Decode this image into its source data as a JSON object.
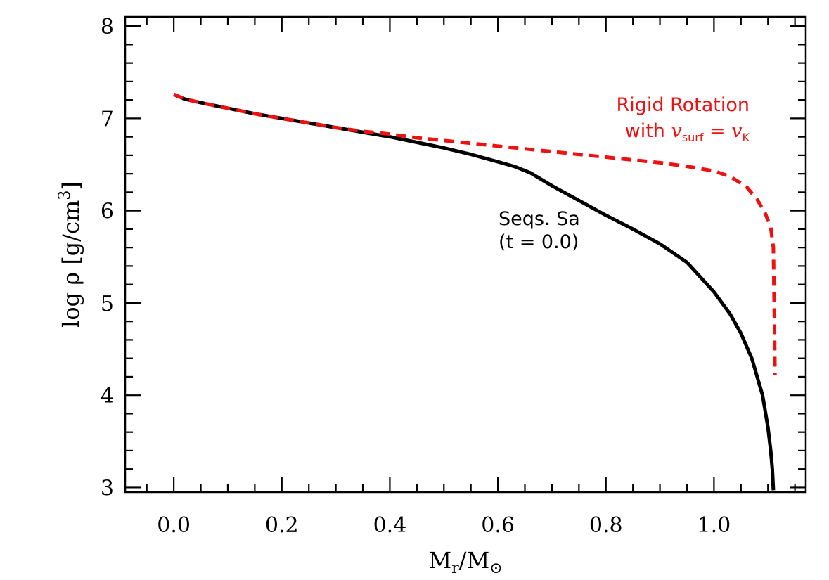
{
  "chart_data": {
    "type": "line",
    "xlim": [
      -0.09,
      1.17
    ],
    "ylim": [
      2.95,
      8.1
    ],
    "x_ticks": [
      0.0,
      0.2,
      0.4,
      0.6,
      0.8,
      1.0
    ],
    "x_tick_labels": [
      "0.0",
      "0.2",
      "0.4",
      "0.6",
      "0.8",
      "1.0"
    ],
    "y_ticks": [
      3,
      4,
      5,
      6,
      7,
      8
    ],
    "y_tick_labels": [
      "3",
      "4",
      "5",
      "6",
      "7",
      "8"
    ],
    "xlabel": {
      "base": "M",
      "sub": "r",
      "slash": "/",
      "base2": "M",
      "sub2": "⊙"
    },
    "ylabel": {
      "prefix": "log ρ  [g/cm",
      "sup": "3",
      "suffix": "]"
    },
    "grid": false,
    "series": [
      {
        "name": "Seqs. Sa (t = 0.0)",
        "color": "#000000",
        "dash": "solid",
        "x": [
          0.0,
          0.02,
          0.05,
          0.1,
          0.15,
          0.2,
          0.25,
          0.3,
          0.35,
          0.4,
          0.45,
          0.5,
          0.55,
          0.6,
          0.63,
          0.66,
          0.7,
          0.75,
          0.8,
          0.85,
          0.9,
          0.95,
          1.0,
          1.03,
          1.05,
          1.07,
          1.09,
          1.1,
          1.105,
          1.108,
          1.11
        ],
        "y": [
          7.26,
          7.21,
          7.17,
          7.11,
          7.05,
          7.0,
          6.95,
          6.9,
          6.85,
          6.8,
          6.74,
          6.68,
          6.61,
          6.53,
          6.48,
          6.41,
          6.27,
          6.11,
          5.95,
          5.8,
          5.64,
          5.44,
          5.12,
          4.88,
          4.67,
          4.4,
          4.0,
          3.65,
          3.4,
          3.2,
          2.97
        ]
      },
      {
        "name": "Rigid Rotation with v_surf = v_K",
        "color": "#ee1111",
        "dash": "dashed",
        "x": [
          0.0,
          0.02,
          0.05,
          0.1,
          0.15,
          0.2,
          0.25,
          0.3,
          0.35,
          0.4,
          0.45,
          0.5,
          0.55,
          0.6,
          0.65,
          0.7,
          0.75,
          0.8,
          0.85,
          0.9,
          0.95,
          1.0,
          1.03,
          1.06,
          1.08,
          1.095,
          1.105,
          1.11,
          1.112,
          1.113
        ],
        "y": [
          7.26,
          7.21,
          7.17,
          7.11,
          7.05,
          7.0,
          6.95,
          6.9,
          6.86,
          6.83,
          6.79,
          6.76,
          6.73,
          6.7,
          6.67,
          6.64,
          6.61,
          6.58,
          6.55,
          6.52,
          6.48,
          6.43,
          6.37,
          6.26,
          6.12,
          5.97,
          5.82,
          5.6,
          4.8,
          4.22
        ]
      }
    ],
    "annotations": [
      {
        "id": "black",
        "lines": [
          "Seqs. Sa",
          "(t = 0.0)"
        ],
        "color": "#000000"
      },
      {
        "id": "red",
        "line1": "Rigid Rotation",
        "line2_prefix": "with ",
        "var1": "v",
        "sub1": "surf",
        "eq": " = ",
        "var2": "v",
        "sub2": "K",
        "color": "#ee1111"
      }
    ]
  }
}
